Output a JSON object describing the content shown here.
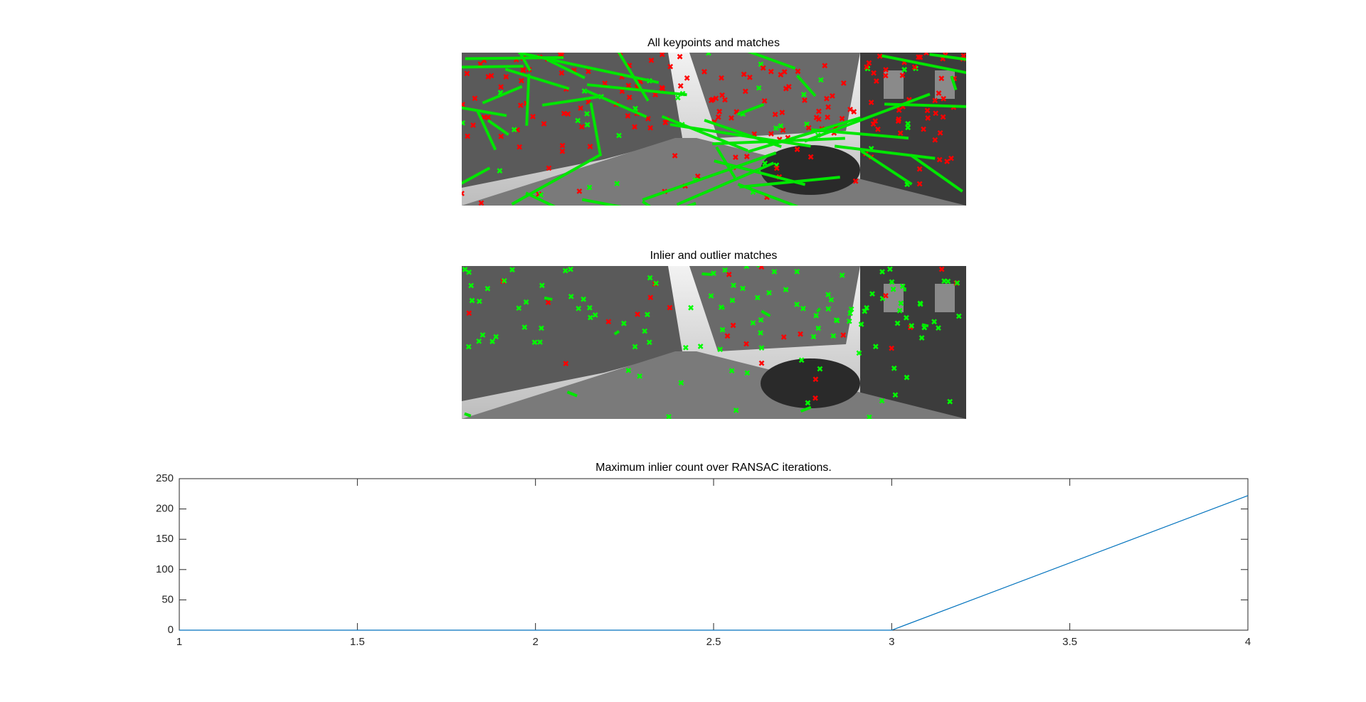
{
  "panels": [
    {
      "title": "All keypoints and matches"
    },
    {
      "title": "Inlier and outlier matches"
    }
  ],
  "chart_data": {
    "type": "line",
    "title": "Maximum inlier count over RANSAC iterations.",
    "x": [
      1,
      2,
      3,
      4
    ],
    "values": [
      0,
      0,
      0,
      222
    ],
    "color": "#0072bd",
    "xlim": [
      1,
      4
    ],
    "xticks": [
      1,
      1.5,
      2,
      2.5,
      3,
      3.5,
      4
    ],
    "ylim": [
      0,
      250
    ],
    "yticks": [
      0,
      50,
      100,
      150,
      200,
      250
    ]
  }
}
